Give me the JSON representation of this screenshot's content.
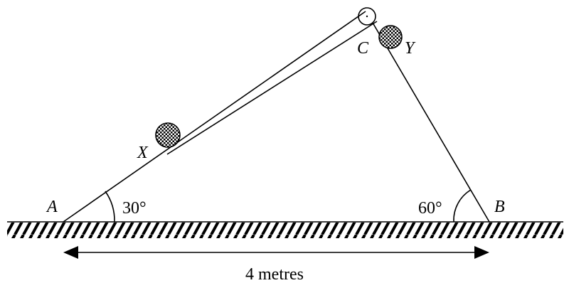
{
  "labels": {
    "a": "A",
    "b": "B",
    "c": "C",
    "x": "X",
    "y": "Y",
    "angle_a": "30°",
    "angle_b": "60°",
    "distance": "4 metres"
  },
  "colors": {
    "ink": "#000000",
    "background": "#ffffff"
  }
}
